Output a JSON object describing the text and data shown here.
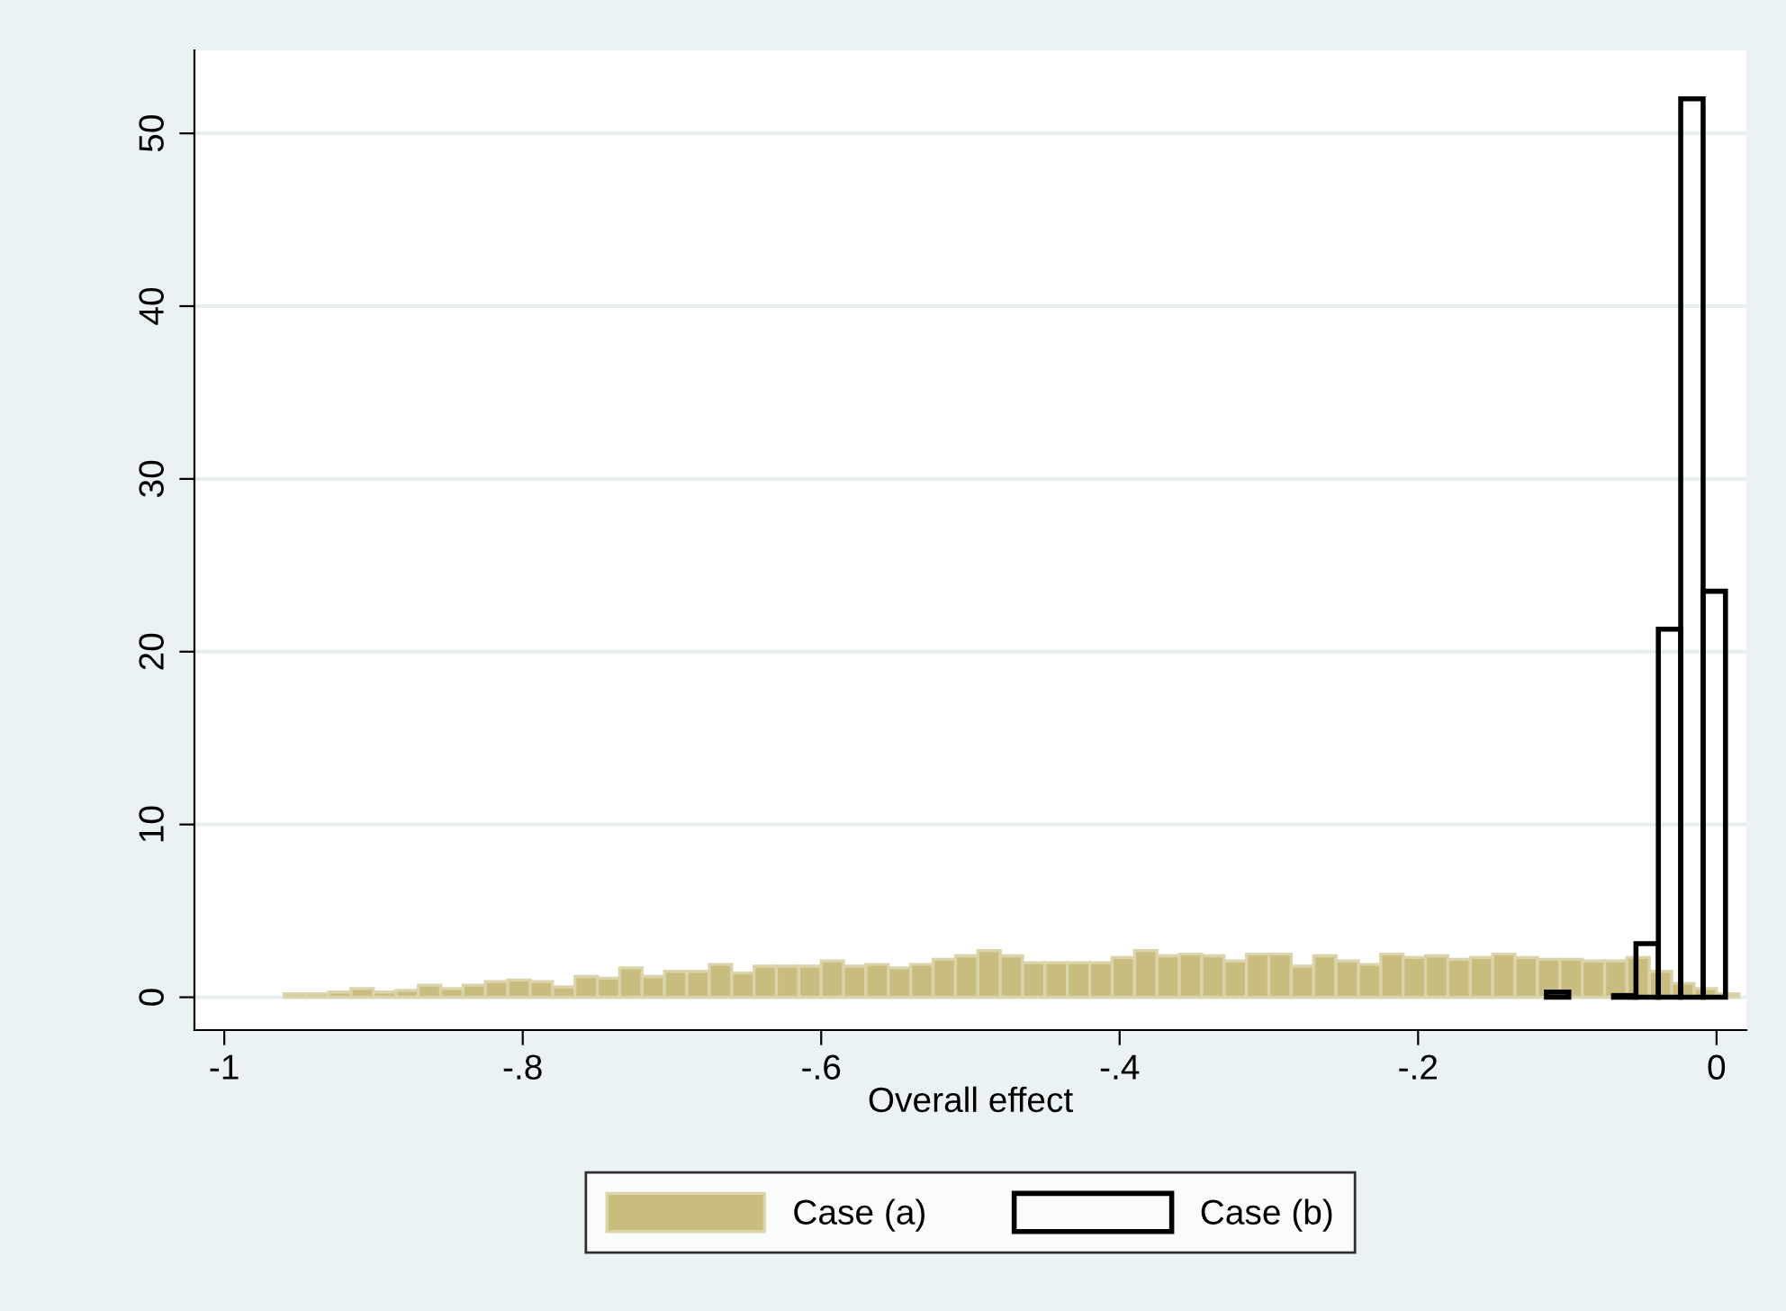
{
  "chart_data": {
    "type": "histogram",
    "xlabel": "Overall effect",
    "xlim": [
      -1.02,
      0.02
    ],
    "ylim": [
      -1.9,
      54.8
    ],
    "xticks": [
      {
        "value": -1,
        "label": "-1"
      },
      {
        "value": -0.8,
        "label": "-.8"
      },
      {
        "value": -0.6,
        "label": "-.6"
      },
      {
        "value": -0.4,
        "label": "-.4"
      },
      {
        "value": -0.2,
        "label": "-.2"
      },
      {
        "value": 0,
        "label": "0"
      }
    ],
    "yticks": [
      0,
      10,
      20,
      30,
      40,
      50
    ],
    "grid": "y",
    "legend": "bottom",
    "bins": [
      -0.96,
      -0.945,
      -0.93,
      -0.915,
      -0.9,
      -0.885,
      -0.87,
      -0.855,
      -0.84,
      -0.825,
      -0.81,
      -0.795,
      -0.78,
      -0.765,
      -0.75,
      -0.735,
      -0.72,
      -0.705,
      -0.69,
      -0.675,
      -0.66,
      -0.645,
      -0.63,
      -0.615,
      -0.6,
      -0.585,
      -0.57,
      -0.555,
      -0.54,
      -0.525,
      -0.51,
      -0.495,
      -0.48,
      -0.465,
      -0.45,
      -0.435,
      -0.42,
      -0.405,
      -0.39,
      -0.375,
      -0.36,
      -0.345,
      -0.33,
      -0.315,
      -0.3,
      -0.285,
      -0.27,
      -0.255,
      -0.24,
      -0.225,
      -0.21,
      -0.195,
      -0.18,
      -0.165,
      -0.15,
      -0.135,
      -0.12,
      -0.105,
      -0.09,
      -0.075,
      -0.06,
      -0.045,
      -0.03,
      -0.015,
      0,
      0.015
    ],
    "series": [
      {
        "name": "Case (a)",
        "color": "#c8bd7e",
        "values": [
          0.2,
          0.2,
          0.3,
          0.5,
          0.3,
          0.4,
          0.7,
          0.5,
          0.7,
          0.9,
          1.0,
          0.9,
          0.6,
          1.2,
          1.1,
          1.7,
          1.2,
          1.5,
          1.5,
          1.9,
          1.4,
          1.8,
          1.8,
          1.8,
          2.1,
          1.8,
          1.9,
          1.7,
          1.9,
          2.2,
          2.4,
          2.7,
          2.4,
          2.0,
          2.0,
          2.0,
          2.0,
          2.3,
          2.7,
          2.4,
          2.5,
          2.4,
          2.1,
          2.5,
          2.5,
          1.8,
          2.4,
          2.1,
          1.9,
          2.5,
          2.3,
          2.4,
          2.2,
          2.3,
          2.5,
          2.3,
          2.2,
          2.2,
          2.1,
          2.1,
          2.3,
          1.5,
          0.8,
          0.5,
          0.2
        ]
      },
      {
        "name": "Case (b)",
        "color": "#000000",
        "bins": [
          -0.114,
          -0.099,
          -0.084,
          -0.069,
          -0.054,
          -0.039,
          -0.024,
          -0.009,
          0.006
        ],
        "values": [
          0.3,
          0,
          0,
          0.1,
          3.1,
          21.3,
          52,
          23.5
        ]
      }
    ]
  }
}
